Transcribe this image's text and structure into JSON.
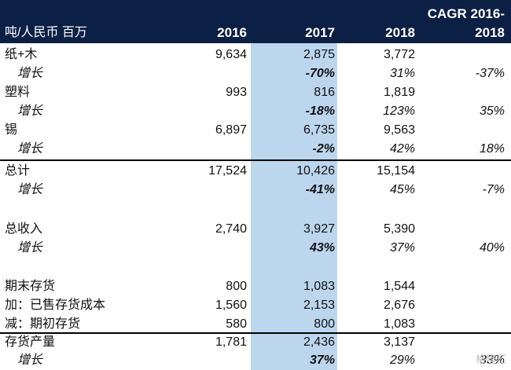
{
  "header": {
    "label": "吨/人民币 百万",
    "y2016": "2016",
    "y2017": "2017",
    "y2018": "2018",
    "cagr_line1": "CAGR 2016-",
    "cagr_line2": "2018"
  },
  "rows": {
    "paper_wood": {
      "label": "纸+木",
      "v2016": "9,634",
      "v2017": "2,875",
      "v2018": "3,772"
    },
    "paper_wood_growth": {
      "label": "增长",
      "v2017": "-70%",
      "v2018": "31%",
      "cagr": "-37%"
    },
    "plastic": {
      "label": "塑料",
      "v2016": "993",
      "v2017": "816",
      "v2018": "1,819"
    },
    "plastic_growth": {
      "label": "增长",
      "v2017": "-18%",
      "v2018": "123%",
      "cagr": "35%"
    },
    "tin": {
      "label": "锡",
      "v2016": "6,897",
      "v2017": "6,735",
      "v2018": "9,563"
    },
    "tin_growth": {
      "label": "增长",
      "v2017": "-2%",
      "v2018": "42%",
      "cagr": "18%"
    },
    "total": {
      "label": "总计",
      "v2016": "17,524",
      "v2017": "10,426",
      "v2018": "15,154"
    },
    "total_growth": {
      "label": "增长",
      "v2017": "-41%",
      "v2018": "45%",
      "cagr": "-7%"
    },
    "revenue": {
      "label": "总收入",
      "v2016": "2,740",
      "v2017": "3,927",
      "v2018": "5,390"
    },
    "revenue_growth": {
      "label": "增长",
      "v2017": "43%",
      "v2018": "37%",
      "cagr": "40%"
    },
    "ending_inventory": {
      "label": "期末存货",
      "v2016": "800",
      "v2017": "1,083",
      "v2018": "1,544"
    },
    "add_cogs": {
      "label": "加：已售存货成本",
      "v2016": "1,560",
      "v2017": "2,153",
      "v2018": "2,676"
    },
    "less_opening": {
      "label": "减：期初存货",
      "v2016": "580",
      "v2017": "800",
      "v2018": "1,083"
    },
    "production": {
      "label": "存货产量",
      "v2016": "1,781",
      "v2017": "2,436",
      "v2018": "3,137"
    },
    "production_growth": {
      "label": "增长",
      "v2017": "37%",
      "v2018": "29%",
      "cagr": "33%"
    }
  },
  "watermark": "格隆汇"
}
